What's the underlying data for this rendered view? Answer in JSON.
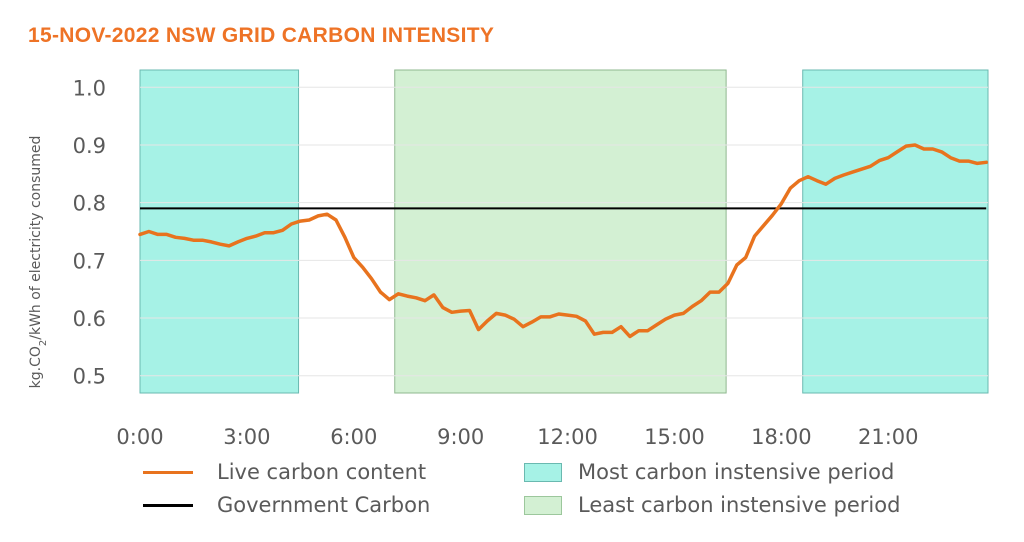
{
  "chart_data": {
    "type": "line",
    "title": "15-NOV-2022 NSW GRID CARBON INTENSITY",
    "ylabel": "kg.CO2/kWh of electricity consumed",
    "ylabel_parts": {
      "pre": "kg.CO",
      "sub": "2",
      "post": "/kWh of electricity consumed"
    },
    "xlabel": "",
    "ylim": [
      0.47,
      1.03
    ],
    "xlim": [
      0,
      23.8
    ],
    "y_ticks": [
      "0.5",
      "0.6",
      "0.7",
      "0.8",
      "0.9",
      "1.0"
    ],
    "x_ticks": [
      "0:00",
      "3:00",
      "6:00",
      "9:00",
      "12:00",
      "15:00",
      "18:00",
      "21:00"
    ],
    "grid": true,
    "legend_position": "bottom",
    "series": [
      {
        "name": "Live carbon content",
        "color": "#e8731e",
        "x": [
          0,
          0.25,
          0.5,
          0.75,
          1.0,
          1.25,
          1.5,
          1.75,
          2.0,
          2.25,
          2.5,
          2.75,
          3.0,
          3.25,
          3.5,
          3.75,
          4.0,
          4.25,
          4.5,
          4.75,
          5.0,
          5.25,
          5.5,
          5.75,
          6.0,
          6.25,
          6.5,
          6.75,
          7.0,
          7.25,
          7.5,
          7.75,
          8.0,
          8.25,
          8.5,
          8.75,
          9.0,
          9.25,
          9.5,
          9.75,
          10.0,
          10.25,
          10.5,
          10.75,
          11.0,
          11.25,
          11.5,
          11.75,
          12.0,
          12.25,
          12.5,
          12.75,
          13.0,
          13.25,
          13.5,
          13.75,
          14.0,
          14.25,
          14.5,
          14.75,
          15.0,
          15.25,
          15.5,
          15.75,
          16.0,
          16.25,
          16.5,
          16.75,
          17.0,
          17.25,
          17.5,
          17.75,
          18.0,
          18.25,
          18.5,
          18.75,
          19.0,
          19.25,
          19.5,
          19.75,
          20.0,
          20.25,
          20.5,
          20.75,
          21.0,
          21.25,
          21.5,
          21.75,
          22.0,
          22.25,
          22.5,
          22.75,
          23.0,
          23.25,
          23.5,
          23.75
        ],
        "values": [
          0.745,
          0.75,
          0.745,
          0.745,
          0.74,
          0.738,
          0.735,
          0.735,
          0.732,
          0.728,
          0.725,
          0.732,
          0.738,
          0.742,
          0.748,
          0.748,
          0.752,
          0.763,
          0.768,
          0.77,
          0.777,
          0.78,
          0.77,
          0.74,
          0.705,
          0.688,
          0.668,
          0.645,
          0.632,
          0.642,
          0.638,
          0.635,
          0.63,
          0.64,
          0.618,
          0.61,
          0.612,
          0.613,
          0.58,
          0.595,
          0.608,
          0.605,
          0.598,
          0.585,
          0.593,
          0.602,
          0.602,
          0.607,
          0.605,
          0.603,
          0.595,
          0.572,
          0.575,
          0.575,
          0.585,
          0.568,
          0.578,
          0.578,
          0.588,
          0.598,
          0.605,
          0.608,
          0.62,
          0.63,
          0.645,
          0.645,
          0.66,
          0.692,
          0.705,
          0.742,
          0.76,
          0.778,
          0.798,
          0.825,
          0.838,
          0.845,
          0.838,
          0.832,
          0.842,
          0.848,
          0.853,
          0.858,
          0.863,
          0.873,
          0.878,
          0.888,
          0.898,
          0.9,
          0.893,
          0.893,
          0.888,
          0.878,
          0.872,
          0.872,
          0.868,
          0.87
        ]
      },
      {
        "name": "Government Carbon",
        "color": "#000000",
        "x": [
          0,
          23.75
        ],
        "values": [
          0.79,
          0.79
        ]
      }
    ],
    "bands": [
      {
        "name": "Most carbon instensive period",
        "x_start": 0.0,
        "x_end": 4.45,
        "color": "#a6f2e6"
      },
      {
        "name": "Least carbon instensive period",
        "x_start": 7.15,
        "x_end": 16.45,
        "color": "#d3f0d3"
      },
      {
        "name": "Most carbon instensive period",
        "x_start": 18.6,
        "x_end": 23.8,
        "color": "#a6f2e6"
      }
    ]
  },
  "legend": {
    "live": "Live carbon content",
    "government": "Government Carbon",
    "most": "Most carbon instensive period",
    "least": "Least carbon instensive period"
  },
  "colors": {
    "title": "#ee7326",
    "live": "#e8731e",
    "government": "#000000",
    "most": "#a6f2e6",
    "least": "#d3f0d3"
  }
}
